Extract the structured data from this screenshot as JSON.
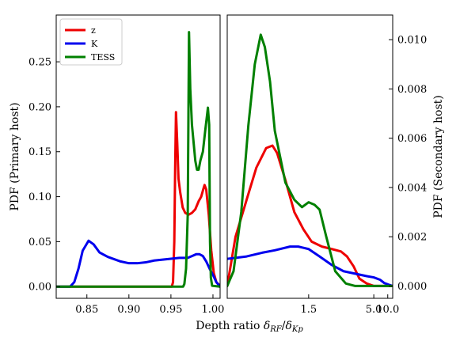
{
  "chart_data": [
    {
      "type": "line",
      "panel": "left",
      "ylabel": "PDF (Primary host)",
      "ylim": [
        -0.013,
        0.302
      ],
      "x_ticks": [
        {
          "value": 0.85,
          "label": "0.85"
        },
        {
          "value": 0.9,
          "label": "0.90"
        },
        {
          "value": 0.95,
          "label": "0.95"
        },
        {
          "value": 1.0,
          "label": "1.00"
        }
      ],
      "y_ticks": [
        {
          "value": 0.0,
          "label": "0.00"
        },
        {
          "value": 0.05,
          "label": "0.05"
        },
        {
          "value": 0.1,
          "label": "0.10"
        },
        {
          "value": 0.15,
          "label": "0.15"
        },
        {
          "value": 0.2,
          "label": "0.20"
        },
        {
          "value": 0.25,
          "label": "0.25"
        }
      ],
      "xlim": [
        0.8135,
        1.0085
      ],
      "series": [
        {
          "name": "z",
          "color": "#ee0000",
          "points": [
            [
              0.8135,
              0
            ],
            [
              0.951,
              0
            ],
            [
              0.9525,
              0.005
            ],
            [
              0.954,
              0.05
            ],
            [
              0.955,
              0.13
            ],
            [
              0.956,
              0.194
            ],
            [
              0.9575,
              0.16
            ],
            [
              0.959,
              0.12
            ],
            [
              0.961,
              0.105
            ],
            [
              0.964,
              0.088
            ],
            [
              0.967,
              0.082
            ],
            [
              0.971,
              0.08
            ],
            [
              0.975,
              0.082
            ],
            [
              0.979,
              0.086
            ],
            [
              0.983,
              0.095
            ],
            [
              0.986,
              0.1
            ],
            [
              0.989,
              0.11
            ],
            [
              0.99,
              0.113
            ],
            [
              0.992,
              0.108
            ],
            [
              0.995,
              0.08
            ],
            [
              0.998,
              0.04
            ],
            [
              1.001,
              0.015
            ],
            [
              1.004,
              0.005
            ],
            [
              1.0085,
              0.001
            ]
          ]
        },
        {
          "name": "K",
          "color": "#0000ee",
          "points": [
            [
              0.8135,
              0
            ],
            [
              0.83,
              0
            ],
            [
              0.835,
              0.005
            ],
            [
              0.84,
              0.02
            ],
            [
              0.845,
              0.04
            ],
            [
              0.852,
              0.051
            ],
            [
              0.858,
              0.047
            ],
            [
              0.865,
              0.038
            ],
            [
              0.875,
              0.033
            ],
            [
              0.89,
              0.028
            ],
            [
              0.9,
              0.026
            ],
            [
              0.91,
              0.026
            ],
            [
              0.92,
              0.027
            ],
            [
              0.93,
              0.029
            ],
            [
              0.94,
              0.03
            ],
            [
              0.95,
              0.031
            ],
            [
              0.96,
              0.032
            ],
            [
              0.97,
              0.032
            ],
            [
              0.975,
              0.034
            ],
            [
              0.98,
              0.036
            ],
            [
              0.984,
              0.036
            ],
            [
              0.988,
              0.034
            ],
            [
              0.992,
              0.028
            ],
            [
              0.996,
              0.02
            ],
            [
              1.0,
              0.013
            ],
            [
              1.004,
              0.005
            ],
            [
              1.0085,
              0
            ]
          ]
        },
        {
          "name": "TESS",
          "color": "#008000",
          "points": [
            [
              0.8135,
              0
            ],
            [
              0.9645,
              0
            ],
            [
              0.966,
              0.003
            ],
            [
              0.968,
              0.02
            ],
            [
              0.97,
              0.08
            ],
            [
              0.9715,
              0.283
            ],
            [
              0.973,
              0.22
            ],
            [
              0.975,
              0.18
            ],
            [
              0.977,
              0.16
            ],
            [
              0.979,
              0.14
            ],
            [
              0.981,
              0.13
            ],
            [
              0.983,
              0.13
            ],
            [
              0.985,
              0.14
            ],
            [
              0.988,
              0.15
            ],
            [
              0.991,
              0.175
            ],
            [
              0.994,
              0.199
            ],
            [
              0.9955,
              0.18
            ],
            [
              0.9965,
              0.05
            ],
            [
              0.9975,
              0.01
            ],
            [
              0.999,
              0.001
            ],
            [
              1.0085,
              0
            ]
          ]
        }
      ]
    },
    {
      "type": "line",
      "panel": "right",
      "ylabel": "PDF (Secondary host)",
      "xlim": [
        0.8,
        15.5
      ],
      "ylim": [
        -0.0005,
        0.011
      ],
      "x_scale": "reciprocal",
      "x_ticks": [
        {
          "value": 1.5,
          "label": "1.5"
        },
        {
          "value": 5.0,
          "label": "5.0"
        },
        {
          "value": 10.0,
          "label": "10.0"
        }
      ],
      "y_ticks": [
        {
          "value": 0.0,
          "label": "0.000"
        },
        {
          "value": 0.002,
          "label": "0.002"
        },
        {
          "value": 0.004,
          "label": "0.004"
        },
        {
          "value": 0.006,
          "label": "0.006"
        },
        {
          "value": 0.008,
          "label": "0.008"
        },
        {
          "value": 0.01,
          "label": "0.010"
        }
      ],
      "series": [
        {
          "name": "z",
          "color": "#ee0000",
          "points": [
            [
              0.8,
              0
            ],
            [
              0.84,
              0.002
            ],
            [
              0.9,
              0.0035
            ],
            [
              0.96,
              0.0048
            ],
            [
              1.03,
              0.0056
            ],
            [
              1.08,
              0.0057
            ],
            [
              1.12,
              0.0054
            ],
            [
              1.2,
              0.0043
            ],
            [
              1.3,
              0.003
            ],
            [
              1.42,
              0.0023
            ],
            [
              1.55,
              0.0018
            ],
            [
              1.75,
              0.0016
            ],
            [
              2.0,
              0.0015
            ],
            [
              2.3,
              0.0014
            ],
            [
              2.55,
              0.0012
            ],
            [
              2.9,
              0.0008
            ],
            [
              3.3,
              0.0003
            ],
            [
              4.0,
              0.0001
            ],
            [
              5.0,
              0
            ],
            [
              15.5,
              0
            ]
          ]
        },
        {
          "name": "K",
          "color": "#0000ee",
          "points": [
            [
              0.8,
              0.0011
            ],
            [
              0.9,
              0.0012
            ],
            [
              1.0,
              0.00135
            ],
            [
              1.1,
              0.00145
            ],
            [
              1.25,
              0.0016
            ],
            [
              1.35,
              0.0016
            ],
            [
              1.5,
              0.0015
            ],
            [
              1.7,
              0.0012
            ],
            [
              2.0,
              0.00085
            ],
            [
              2.4,
              0.0006
            ],
            [
              3.0,
              0.0005
            ],
            [
              4.0,
              0.0004
            ],
            [
              5.0,
              0.00035
            ],
            [
              6.5,
              0.00025
            ],
            [
              8.0,
              0.00012
            ],
            [
              11.0,
              5e-05
            ],
            [
              15.5,
              0
            ]
          ]
        },
        {
          "name": "TESS",
          "color": "#008000",
          "points": [
            [
              0.8,
              0
            ],
            [
              0.83,
              0.0006
            ],
            [
              0.87,
              0.003
            ],
            [
              0.91,
              0.0065
            ],
            [
              0.95,
              0.009
            ],
            [
              0.99,
              0.0102
            ],
            [
              1.02,
              0.0097
            ],
            [
              1.06,
              0.0083
            ],
            [
              1.1,
              0.0063
            ],
            [
              1.2,
              0.0042
            ],
            [
              1.3,
              0.0035
            ],
            [
              1.4,
              0.0032
            ],
            [
              1.5,
              0.0034
            ],
            [
              1.6,
              0.0033
            ],
            [
              1.7,
              0.0031
            ],
            [
              1.85,
              0.002
            ],
            [
              2.1,
              0.0006
            ],
            [
              2.5,
              0.0001
            ],
            [
              3.0,
              0
            ],
            [
              15.5,
              0
            ]
          ]
        }
      ]
    }
  ],
  "shared": {
    "xlabel": "Depth ratio δRF/δKp",
    "legend": {
      "placement": "top-left",
      "entries": [
        {
          "label": "z",
          "color": "#ee0000"
        },
        {
          "label": "K",
          "color": "#0000ee"
        },
        {
          "label": "TESS",
          "color": "#008000"
        }
      ]
    }
  }
}
